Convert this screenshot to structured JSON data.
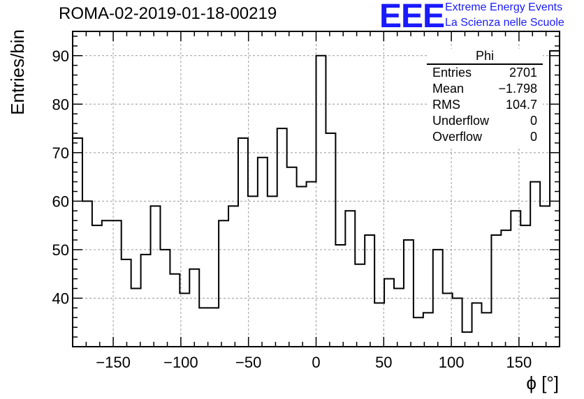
{
  "header": {
    "title": "ROMA-02-2019-01-18-00219",
    "logo": "EEE",
    "brand_line1": "Extreme Energy Events",
    "brand_line2": "La Scienza nelle Scuole"
  },
  "colors": {
    "brand": "#1a1aff",
    "line": "#000000",
    "grid": "#999999"
  },
  "stats": {
    "title": "Phi",
    "rows": [
      {
        "label": "Entries",
        "value": "2701"
      },
      {
        "label": "Mean",
        "value": "−1.798"
      },
      {
        "label": "RMS",
        "value": "104.7"
      },
      {
        "label": "Underflow",
        "value": "0"
      },
      {
        "label": "Overflow",
        "value": "0"
      }
    ]
  },
  "chart_data": {
    "type": "histogram",
    "title": "ROMA-02-2019-01-18-00219",
    "xlabel": "ϕ [°]",
    "ylabel": "Entries/bin",
    "xlim": [
      -180,
      180
    ],
    "ylim": [
      30,
      95
    ],
    "xticks": [
      -150,
      -100,
      -50,
      0,
      50,
      100,
      150
    ],
    "xtick_labels": [
      "−150",
      "−100",
      "−50",
      "0",
      "50",
      "100",
      "150"
    ],
    "yticks": [
      40,
      50,
      60,
      70,
      80,
      90
    ],
    "ytick_labels": [
      "40",
      "50",
      "60",
      "70",
      "80",
      "90"
    ],
    "grid": true,
    "bin_edges_start": -180,
    "bin_width": 7.2,
    "values": [
      73,
      60,
      55,
      56,
      56,
      48,
      42,
      49,
      59,
      50,
      45,
      41,
      46,
      38,
      38,
      56,
      59,
      73,
      61,
      69,
      61,
      75,
      67,
      63,
      64,
      90,
      74,
      51,
      58,
      47,
      53,
      39,
      44,
      42,
      52,
      36,
      37,
      50,
      41,
      40,
      33,
      39,
      37,
      53,
      54,
      58,
      55,
      64,
      59,
      91
    ]
  }
}
